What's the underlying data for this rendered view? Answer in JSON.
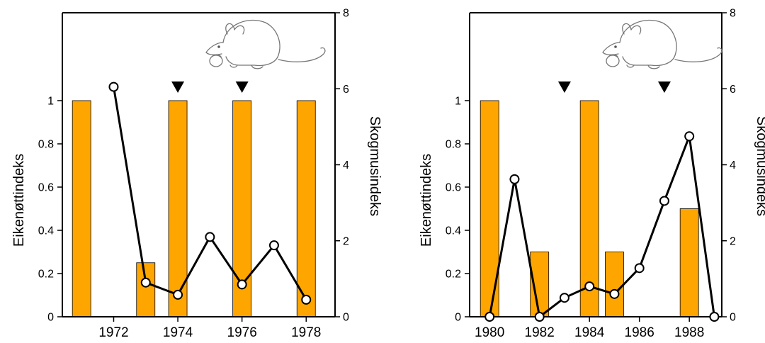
{
  "colors": {
    "bar_fill": "#FFA500",
    "bar_stroke": "#000000",
    "line": "#000000",
    "marker_fill": "#FFFFFF",
    "triangle": "#000000"
  },
  "icons": [
    "mouse-illustration"
  ],
  "chart_data": [
    {
      "type": "bar+line",
      "xlabel": "",
      "ylabel_left": "Eikenøttindeks",
      "ylabel_right": "Skogmusindeks",
      "x_range": [
        1970.4,
        1978.9
      ],
      "x_ticks": [
        1972,
        1974,
        1976,
        1978
      ],
      "x_tick_labels": [
        "1972",
        "1974",
        "1976",
        "1978"
      ],
      "ylim_left": [
        0,
        1
      ],
      "y_ticks_left": [
        "0",
        "0.2",
        "0.4",
        "0.6",
        "0.8",
        "1"
      ],
      "y_tick_values_left": [
        0,
        0.2,
        0.4,
        0.6,
        0.8,
        1
      ],
      "ylim_right": [
        0,
        8
      ],
      "y_ticks_right": [
        "0",
        "2",
        "4",
        "6",
        "8"
      ],
      "y_tick_values_right": [
        0,
        2,
        4,
        6,
        8
      ],
      "bars": {
        "axis": "left",
        "x": [
          1971,
          1973,
          1974,
          1976,
          1978
        ],
        "values": [
          1,
          0.25,
          1,
          1,
          1
        ]
      },
      "line": {
        "axis": "right",
        "x": [
          1972,
          1973,
          1974,
          1975,
          1976,
          1977,
          1978
        ],
        "values": [
          6.05,
          0.9,
          0.58,
          2.1,
          0.85,
          1.88,
          0.45
        ]
      },
      "markers": {
        "symbol": "down-triangle",
        "x": [
          1974,
          1976
        ]
      }
    },
    {
      "type": "bar+line",
      "xlabel": "",
      "ylabel_left": "Eikenøttindeks",
      "ylabel_right": "Skogmusindeks",
      "x_range": [
        1979.2,
        1989.3
      ],
      "x_ticks": [
        1980,
        1982,
        1984,
        1986,
        1988
      ],
      "x_tick_labels": [
        "1980",
        "1982",
        "1984",
        "1986",
        "1988"
      ],
      "ylim_left": [
        0,
        1
      ],
      "y_ticks_left": [
        "0",
        "0.2",
        "0.4",
        "0.6",
        "0.8",
        "1"
      ],
      "y_tick_values_left": [
        0,
        0.2,
        0.4,
        0.6,
        0.8,
        1
      ],
      "ylim_right": [
        0,
        8
      ],
      "y_ticks_right": [
        "0",
        "2",
        "4",
        "6",
        "8"
      ],
      "y_tick_values_right": [
        0,
        2,
        4,
        6,
        8
      ],
      "bars": {
        "axis": "left",
        "x": [
          1980,
          1982,
          1984,
          1985,
          1988
        ],
        "values": [
          1,
          0.3,
          1,
          0.3,
          0.5
        ]
      },
      "line": {
        "axis": "right",
        "x": [
          1980,
          1981,
          1982,
          1983,
          1984,
          1985,
          1986,
          1987,
          1988,
          1989
        ],
        "values": [
          0,
          3.62,
          0,
          0.5,
          0.8,
          0.6,
          1.28,
          3.05,
          4.75,
          0
        ]
      },
      "markers": {
        "symbol": "down-triangle",
        "x": [
          1983,
          1987
        ]
      }
    }
  ]
}
